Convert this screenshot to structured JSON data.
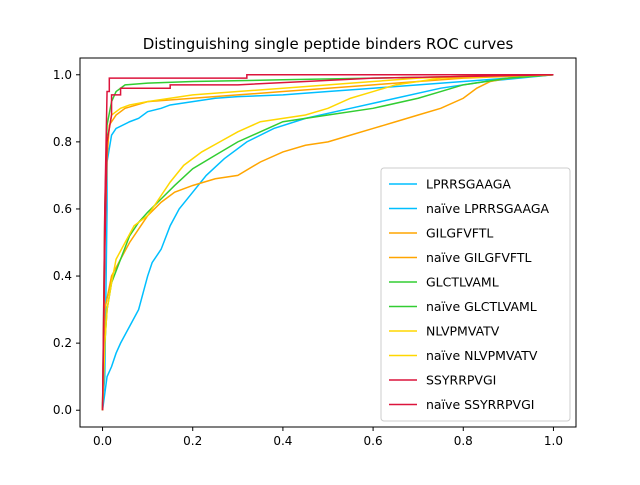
{
  "chart_data": {
    "type": "line",
    "title": "Distinguishing single peptide binders ROC curves",
    "xlabel": "",
    "ylabel": "",
    "xlim": [
      -0.05,
      1.05
    ],
    "ylim": [
      -0.05,
      1.05
    ],
    "xticks": [
      0.0,
      0.2,
      0.4,
      0.6,
      0.8,
      1.0
    ],
    "yticks": [
      0.0,
      0.2,
      0.4,
      0.6,
      0.8,
      1.0
    ],
    "xtick_labels": [
      "0.0",
      "0.2",
      "0.4",
      "0.6",
      "0.8",
      "1.0"
    ],
    "ytick_labels": [
      "0.0",
      "0.2",
      "0.4",
      "0.6",
      "0.8",
      "1.0"
    ],
    "grid": false,
    "legend_position": "lower-right",
    "series": [
      {
        "name": "LPRRSGAAGA",
        "color": "#00bfff",
        "points": [
          [
            0,
            0
          ],
          [
            0,
            0.02
          ],
          [
            0.005,
            0.1
          ],
          [
            0.01,
            0.6
          ],
          [
            0.01,
            0.74
          ],
          [
            0.02,
            0.82
          ],
          [
            0.03,
            0.84
          ],
          [
            0.06,
            0.86
          ],
          [
            0.08,
            0.87
          ],
          [
            0.1,
            0.89
          ],
          [
            0.13,
            0.9
          ],
          [
            0.15,
            0.91
          ],
          [
            0.2,
            0.92
          ],
          [
            0.25,
            0.93
          ],
          [
            0.3,
            0.935
          ],
          [
            0.4,
            0.94
          ],
          [
            0.5,
            0.95
          ],
          [
            0.6,
            0.96
          ],
          [
            0.7,
            0.97
          ],
          [
            0.8,
            0.98
          ],
          [
            0.9,
            0.99
          ],
          [
            1.0,
            1.0
          ]
        ]
      },
      {
        "name": "naïve LPRRSGAAGA",
        "color": "#00bfff",
        "points": [
          [
            0,
            0
          ],
          [
            0.005,
            0.05
          ],
          [
            0.01,
            0.1
          ],
          [
            0.02,
            0.13
          ],
          [
            0.03,
            0.17
          ],
          [
            0.04,
            0.2
          ],
          [
            0.06,
            0.25
          ],
          [
            0.08,
            0.3
          ],
          [
            0.09,
            0.35
          ],
          [
            0.1,
            0.4
          ],
          [
            0.11,
            0.44
          ],
          [
            0.13,
            0.48
          ],
          [
            0.15,
            0.55
          ],
          [
            0.17,
            0.6
          ],
          [
            0.2,
            0.65
          ],
          [
            0.23,
            0.7
          ],
          [
            0.27,
            0.75
          ],
          [
            0.32,
            0.8
          ],
          [
            0.38,
            0.84
          ],
          [
            0.45,
            0.87
          ],
          [
            0.55,
            0.9
          ],
          [
            0.65,
            0.93
          ],
          [
            0.75,
            0.96
          ],
          [
            0.85,
            0.98
          ],
          [
            1.0,
            1.0
          ]
        ]
      },
      {
        "name": "GILGFVFTL",
        "color": "#ffa500",
        "points": [
          [
            0,
            0
          ],
          [
            0.005,
            0.5
          ],
          [
            0.01,
            0.75
          ],
          [
            0.015,
            0.85
          ],
          [
            0.03,
            0.88
          ],
          [
            0.05,
            0.9
          ],
          [
            0.1,
            0.92
          ],
          [
            0.2,
            0.93
          ],
          [
            0.3,
            0.94
          ],
          [
            0.4,
            0.95
          ],
          [
            0.5,
            0.96
          ],
          [
            0.6,
            0.97
          ],
          [
            0.7,
            0.98
          ],
          [
            0.8,
            0.99
          ],
          [
            1.0,
            1.0
          ]
        ]
      },
      {
        "name": "naïve GILGFVFTL",
        "color": "#ffa500",
        "points": [
          [
            0,
            0
          ],
          [
            0.005,
            0.3
          ],
          [
            0.02,
            0.4
          ],
          [
            0.04,
            0.45
          ],
          [
            0.06,
            0.5
          ],
          [
            0.08,
            0.54
          ],
          [
            0.1,
            0.58
          ],
          [
            0.13,
            0.62
          ],
          [
            0.16,
            0.65
          ],
          [
            0.2,
            0.67
          ],
          [
            0.25,
            0.69
          ],
          [
            0.3,
            0.7
          ],
          [
            0.35,
            0.74
          ],
          [
            0.4,
            0.77
          ],
          [
            0.45,
            0.79
          ],
          [
            0.5,
            0.8
          ],
          [
            0.55,
            0.82
          ],
          [
            0.6,
            0.84
          ],
          [
            0.65,
            0.86
          ],
          [
            0.7,
            0.88
          ],
          [
            0.75,
            0.9
          ],
          [
            0.8,
            0.93
          ],
          [
            0.83,
            0.96
          ],
          [
            0.86,
            0.98
          ],
          [
            0.9,
            0.99
          ],
          [
            1.0,
            1.0
          ]
        ]
      },
      {
        "name": "GLCTLVAML",
        "color": "#32cd32",
        "points": [
          [
            0,
            0
          ],
          [
            0.005,
            0.6
          ],
          [
            0.01,
            0.85
          ],
          [
            0.02,
            0.92
          ],
          [
            0.03,
            0.95
          ],
          [
            0.05,
            0.97
          ],
          [
            0.1,
            0.975
          ],
          [
            0.2,
            0.98
          ],
          [
            0.4,
            0.985
          ],
          [
            0.6,
            0.99
          ],
          [
            0.8,
            0.995
          ],
          [
            1.0,
            1.0
          ]
        ]
      },
      {
        "name": "naïve GLCTLVAML",
        "color": "#32cd32",
        "points": [
          [
            0,
            0
          ],
          [
            0.005,
            0.2
          ],
          [
            0.01,
            0.3
          ],
          [
            0.02,
            0.38
          ],
          [
            0.04,
            0.45
          ],
          [
            0.06,
            0.52
          ],
          [
            0.08,
            0.56
          ],
          [
            0.1,
            0.59
          ],
          [
            0.13,
            0.63
          ],
          [
            0.16,
            0.67
          ],
          [
            0.2,
            0.72
          ],
          [
            0.25,
            0.76
          ],
          [
            0.3,
            0.8
          ],
          [
            0.35,
            0.83
          ],
          [
            0.4,
            0.86
          ],
          [
            0.5,
            0.88
          ],
          [
            0.6,
            0.9
          ],
          [
            0.7,
            0.93
          ],
          [
            0.75,
            0.95
          ],
          [
            0.8,
            0.97
          ],
          [
            0.85,
            0.98
          ],
          [
            0.9,
            0.99
          ],
          [
            1.0,
            1.0
          ]
        ]
      },
      {
        "name": "NLVPMVATV",
        "color": "#ffd700",
        "points": [
          [
            0,
            0
          ],
          [
            0.005,
            0.5
          ],
          [
            0.01,
            0.8
          ],
          [
            0.02,
            0.88
          ],
          [
            0.04,
            0.9
          ],
          [
            0.06,
            0.91
          ],
          [
            0.1,
            0.92
          ],
          [
            0.15,
            0.93
          ],
          [
            0.2,
            0.94
          ],
          [
            0.3,
            0.95
          ],
          [
            0.4,
            0.96
          ],
          [
            0.5,
            0.97
          ],
          [
            0.6,
            0.98
          ],
          [
            0.7,
            0.99
          ],
          [
            0.8,
            0.995
          ],
          [
            1.0,
            1.0
          ]
        ]
      },
      {
        "name": "naïve NLVPMVATV",
        "color": "#ffd700",
        "points": [
          [
            0,
            0
          ],
          [
            0.005,
            0.2
          ],
          [
            0.01,
            0.3
          ],
          [
            0.02,
            0.38
          ],
          [
            0.03,
            0.45
          ],
          [
            0.05,
            0.5
          ],
          [
            0.07,
            0.55
          ],
          [
            0.1,
            0.58
          ],
          [
            0.12,
            0.62
          ],
          [
            0.15,
            0.68
          ],
          [
            0.18,
            0.73
          ],
          [
            0.22,
            0.77
          ],
          [
            0.26,
            0.8
          ],
          [
            0.3,
            0.83
          ],
          [
            0.35,
            0.86
          ],
          [
            0.45,
            0.88
          ],
          [
            0.5,
            0.9
          ],
          [
            0.55,
            0.93
          ],
          [
            0.6,
            0.95
          ],
          [
            0.65,
            0.97
          ],
          [
            0.7,
            0.98
          ],
          [
            0.75,
            0.99
          ],
          [
            1.0,
            1.0
          ]
        ]
      },
      {
        "name": "SSYRRPVGI",
        "color": "#dc143c",
        "points": [
          [
            0,
            0
          ],
          [
            0.005,
            0.6
          ],
          [
            0.01,
            0.95
          ],
          [
            0.015,
            0.95
          ],
          [
            0.015,
            0.99
          ],
          [
            0.32,
            0.99
          ],
          [
            0.32,
            1.0
          ],
          [
            1.0,
            1.0
          ]
        ]
      },
      {
        "name": "naïve SSYRRPVGI",
        "color": "#dc143c",
        "points": [
          [
            0,
            0
          ],
          [
            0.005,
            0.47
          ],
          [
            0.01,
            0.8
          ],
          [
            0.015,
            0.84
          ],
          [
            0.02,
            0.88
          ],
          [
            0.02,
            0.94
          ],
          [
            0.04,
            0.94
          ],
          [
            0.04,
            0.96
          ],
          [
            0.15,
            0.96
          ],
          [
            0.15,
            0.97
          ],
          [
            0.3,
            0.97
          ],
          [
            0.45,
            0.98
          ],
          [
            0.6,
            0.99
          ],
          [
            0.8,
            0.995
          ],
          [
            1.0,
            1.0
          ]
        ]
      }
    ]
  }
}
